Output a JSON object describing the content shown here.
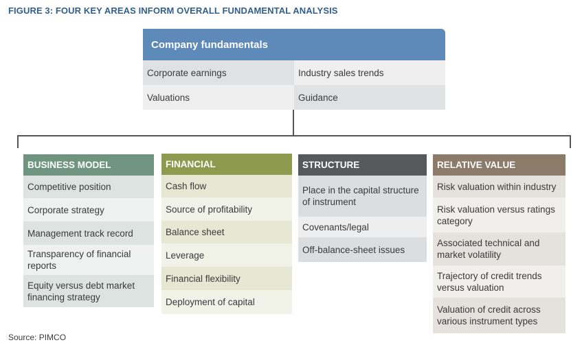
{
  "figure_title": "FIGURE 3: FOUR KEY AREAS INFORM OVERALL FUNDAMENTAL ANALYSIS",
  "top": {
    "title": "Company fundamentals",
    "color": "#5d8ab9",
    "items": [
      "Corporate earnings",
      "Industry sales trends",
      "Valuations",
      "Guidance"
    ]
  },
  "columns": [
    {
      "title": "BUSINESS MODEL",
      "color": "#6f9480",
      "item_bg": [
        "#dde3e0",
        "#eef1ef"
      ],
      "items": [
        "Competitive position",
        "Corporate strategy",
        "Management track record",
        "Transparency of financial reports",
        "Equity versus debt market financing strategy"
      ]
    },
    {
      "title": "FINANCIAL",
      "color": "#8e9a4e",
      "item_bg": [
        "#e6e8d3",
        "#f1f2e8"
      ],
      "items": [
        "Cash flow",
        "Source of profitability",
        "Balance sheet",
        "Leverage",
        "Financial flexibility",
        "Deployment of capital"
      ]
    },
    {
      "title": "STRUCTURE",
      "color": "#58595b",
      "item_bg": [
        "#dcdddf",
        "#eeeeef"
      ],
      "items": [
        "Place in the capital structure of instrument",
        "Covenants/legal",
        "Off-balance-sheet issues"
      ]
    },
    {
      "title": "RELATIVE VALUE",
      "color": "#8c7b68",
      "item_bg": [
        "#e5e1dc",
        "#f1efec"
      ],
      "items": [
        "Risk valuation within industry",
        "Risk valuation versus ratings category",
        "Associated technical and market volatility",
        "Trajectory of credit trends versus valuation",
        "Valuation of credit across various instrument types"
      ]
    }
  ],
  "source": "Source: PIMCO"
}
